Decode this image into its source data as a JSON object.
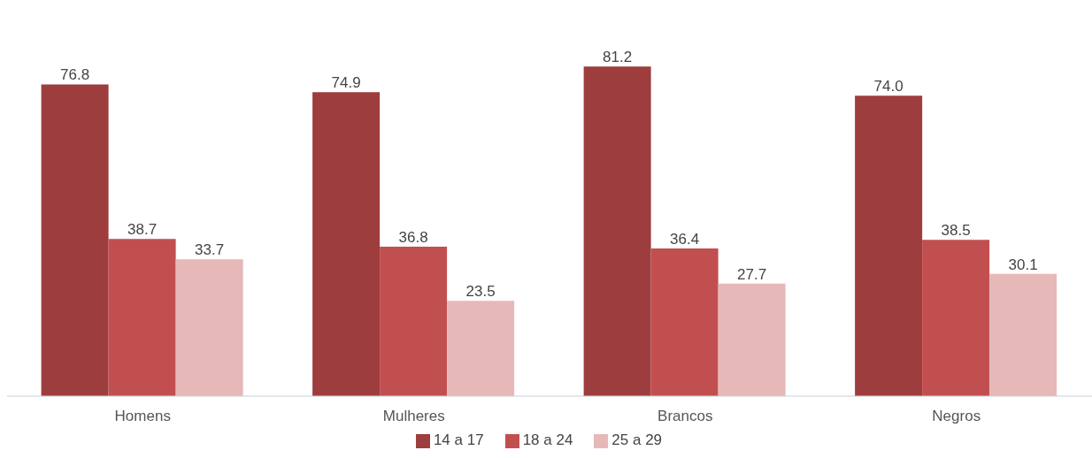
{
  "chart_data": {
    "type": "bar",
    "categories": [
      "Homens",
      "Mulheres",
      "Brancos",
      "Negros"
    ],
    "series": [
      {
        "name": "14 a 17",
        "color": "#9e3d3d",
        "values": [
          76.8,
          74.9,
          81.2,
          74.0
        ],
        "value_labels": [
          "76.8",
          "74.9",
          "81.2",
          "74.0"
        ]
      },
      {
        "name": "18 a 24",
        "color": "#c24f4f",
        "values": [
          38.7,
          36.8,
          36.4,
          38.5
        ]
      },
      {
        "name": "25 a 29",
        "color": "#e6b8b8",
        "values": [
          33.7,
          23.5,
          27.7,
          30.1
        ]
      }
    ],
    "data_labels": true,
    "legend": "bottom"
  }
}
